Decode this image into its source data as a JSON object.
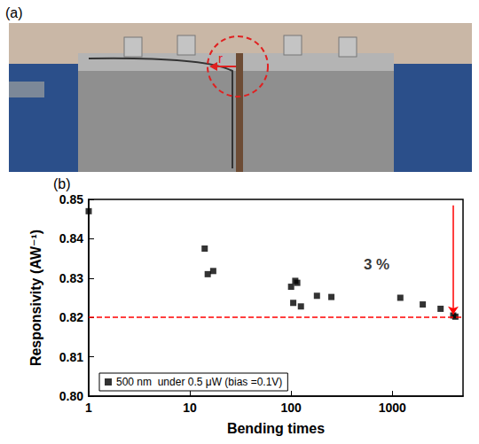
{
  "photo": {
    "label": "(a)",
    "annotation": "r"
  },
  "chart_data": {
    "type": "scatter",
    "panel_label": "(b)",
    "x_label": "Bending times",
    "y_label": "Responsivity (AW⁻¹)",
    "log": "x",
    "xlim": [
      1,
      5000
    ],
    "xticks": [
      1,
      10,
      100,
      1000
    ],
    "ylim": [
      0.8,
      0.85
    ],
    "yticks": [
      {
        "value": 0.8,
        "label": "0.80"
      },
      {
        "value": 0.81,
        "label": "0.81"
      },
      {
        "value": 0.82,
        "label": "0.82"
      },
      {
        "value": 0.83,
        "label": "0.83"
      },
      {
        "value": 0.84,
        "label": "0.84"
      },
      {
        "value": 0.85,
        "label": "0.85"
      }
    ],
    "legend": "lower left",
    "series": [
      {
        "name": "500 nm  under 0.5 μW (bias =0.1V)",
        "color": "#000000",
        "marker": "square",
        "x": [
          1,
          14,
          15,
          17,
          100,
          110,
          115,
          105,
          125,
          180,
          250,
          1200,
          2000,
          3000,
          4000,
          4200
        ],
        "values": [
          0.847,
          0.8375,
          0.831,
          0.8318,
          0.8278,
          0.8293,
          0.8288,
          0.8237,
          0.8228,
          0.8255,
          0.8252,
          0.825,
          0.8233,
          0.8222,
          0.8205,
          0.8202
        ]
      }
    ],
    "hline": {
      "y": 0.8185,
      "color": "#ff0000",
      "line_style": "dashed"
    },
    "arrow": {
      "x": 4000,
      "from": 0.8485,
      "to": 0.8208,
      "color": "#ff0000"
    },
    "annotations": [
      {
        "text": "3 %",
        "x": 700,
        "y": 0.8335
      }
    ]
  }
}
